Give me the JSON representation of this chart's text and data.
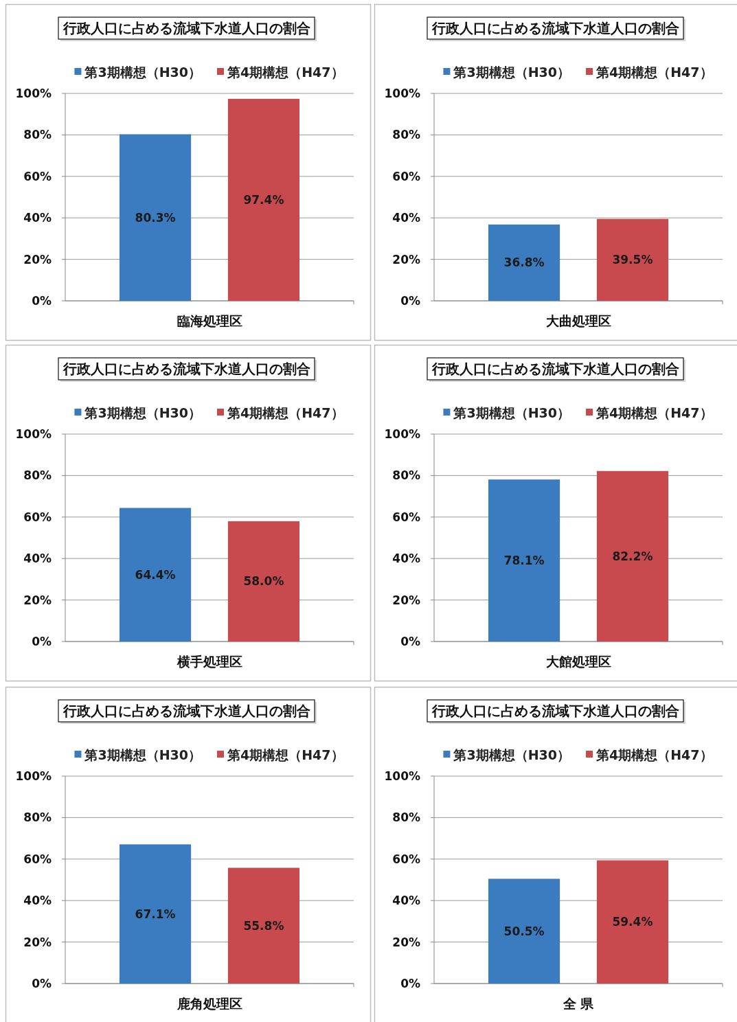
{
  "chart_data": [
    {
      "type": "bar",
      "title": "行政人口に占める流域下水道人口の割合",
      "categories": [
        "臨海処理区"
      ],
      "series": [
        {
          "name": "第3期構想（H30）",
          "color": "#3b7cc0",
          "values": [
            80.3
          ],
          "value_labels": [
            "80.3%"
          ]
        },
        {
          "name": "第4期構想（H47）",
          "color": "#c94a4e",
          "values": [
            97.4
          ],
          "value_labels": [
            "97.4%"
          ]
        }
      ],
      "ylim": [
        0,
        100
      ],
      "yticks": [
        {
          "value": 0,
          "label": "0%"
        },
        {
          "value": 20,
          "label": "20%"
        },
        {
          "value": 40,
          "label": "40%"
        },
        {
          "value": 60,
          "label": "60%"
        },
        {
          "value": 80,
          "label": "80%"
        },
        {
          "value": 100,
          "label": "100%"
        }
      ],
      "grid": "y",
      "legend": "top"
    },
    {
      "type": "bar",
      "title": "行政人口に占める流域下水道人口の割合",
      "categories": [
        "大曲処理区"
      ],
      "series": [
        {
          "name": "第3期構想（H30）",
          "color": "#3b7cc0",
          "values": [
            36.8
          ],
          "value_labels": [
            "36.8%"
          ]
        },
        {
          "name": "第4期構想（H47）",
          "color": "#c94a4e",
          "values": [
            39.5
          ],
          "value_labels": [
            "39.5%"
          ]
        }
      ],
      "ylim": [
        0,
        100
      ],
      "yticks": [
        {
          "value": 0,
          "label": "0%"
        },
        {
          "value": 20,
          "label": "20%"
        },
        {
          "value": 40,
          "label": "40%"
        },
        {
          "value": 60,
          "label": "60%"
        },
        {
          "value": 80,
          "label": "80%"
        },
        {
          "value": 100,
          "label": "100%"
        }
      ],
      "grid": "y",
      "legend": "top"
    },
    {
      "type": "bar",
      "title": "行政人口に占める流域下水道人口の割合",
      "categories": [
        "横手処理区"
      ],
      "series": [
        {
          "name": "第3期構想（H30）",
          "color": "#3b7cc0",
          "values": [
            64.4
          ],
          "value_labels": [
            "64.4%"
          ]
        },
        {
          "name": "第4期構想（H47）",
          "color": "#c94a4e",
          "values": [
            58.0
          ],
          "value_labels": [
            "58.0%"
          ]
        }
      ],
      "ylim": [
        0,
        100
      ],
      "yticks": [
        {
          "value": 0,
          "label": "0%"
        },
        {
          "value": 20,
          "label": "20%"
        },
        {
          "value": 40,
          "label": "40%"
        },
        {
          "value": 60,
          "label": "60%"
        },
        {
          "value": 80,
          "label": "80%"
        },
        {
          "value": 100,
          "label": "100%"
        }
      ],
      "grid": "y",
      "legend": "top"
    },
    {
      "type": "bar",
      "title": "行政人口に占める流域下水道人口の割合",
      "categories": [
        "大館処理区"
      ],
      "series": [
        {
          "name": "第3期構想（H30）",
          "color": "#3b7cc0",
          "values": [
            78.1
          ],
          "value_labels": [
            "78.1%"
          ]
        },
        {
          "name": "第4期構想（H47）",
          "color": "#c94a4e",
          "values": [
            82.2
          ],
          "value_labels": [
            "82.2%"
          ]
        }
      ],
      "ylim": [
        0,
        100
      ],
      "yticks": [
        {
          "value": 0,
          "label": "0%"
        },
        {
          "value": 20,
          "label": "20%"
        },
        {
          "value": 40,
          "label": "40%"
        },
        {
          "value": 60,
          "label": "60%"
        },
        {
          "value": 80,
          "label": "80%"
        },
        {
          "value": 100,
          "label": "100%"
        }
      ],
      "grid": "y",
      "legend": "top"
    },
    {
      "type": "bar",
      "title": "行政人口に占める流域下水道人口の割合",
      "categories": [
        "鹿角処理区"
      ],
      "series": [
        {
          "name": "第3期構想（H30）",
          "color": "#3b7cc0",
          "values": [
            67.1
          ],
          "value_labels": [
            "67.1%"
          ]
        },
        {
          "name": "第4期構想（H47）",
          "color": "#c94a4e",
          "values": [
            55.8
          ],
          "value_labels": [
            "55.8%"
          ]
        }
      ],
      "ylim": [
        0,
        100
      ],
      "yticks": [
        {
          "value": 0,
          "label": "0%"
        },
        {
          "value": 20,
          "label": "20%"
        },
        {
          "value": 40,
          "label": "40%"
        },
        {
          "value": 60,
          "label": "60%"
        },
        {
          "value": 80,
          "label": "80%"
        },
        {
          "value": 100,
          "label": "100%"
        }
      ],
      "grid": "y",
      "legend": "top"
    },
    {
      "type": "bar",
      "title": "行政人口に占める流域下水道人口の割合",
      "categories": [
        "全 県"
      ],
      "series": [
        {
          "name": "第3期構想（H30）",
          "color": "#3b7cc0",
          "values": [
            50.5
          ],
          "value_labels": [
            "50.5%"
          ]
        },
        {
          "name": "第4期構想（H47）",
          "color": "#c94a4e",
          "values": [
            59.4
          ],
          "value_labels": [
            "59.4%"
          ]
        }
      ],
      "ylim": [
        0,
        100
      ],
      "yticks": [
        {
          "value": 0,
          "label": "0%"
        },
        {
          "value": 20,
          "label": "20%"
        },
        {
          "value": 40,
          "label": "40%"
        },
        {
          "value": 60,
          "label": "60%"
        },
        {
          "value": 80,
          "label": "80%"
        },
        {
          "value": 100,
          "label": "100%"
        }
      ],
      "grid": "y",
      "legend": "top"
    }
  ]
}
